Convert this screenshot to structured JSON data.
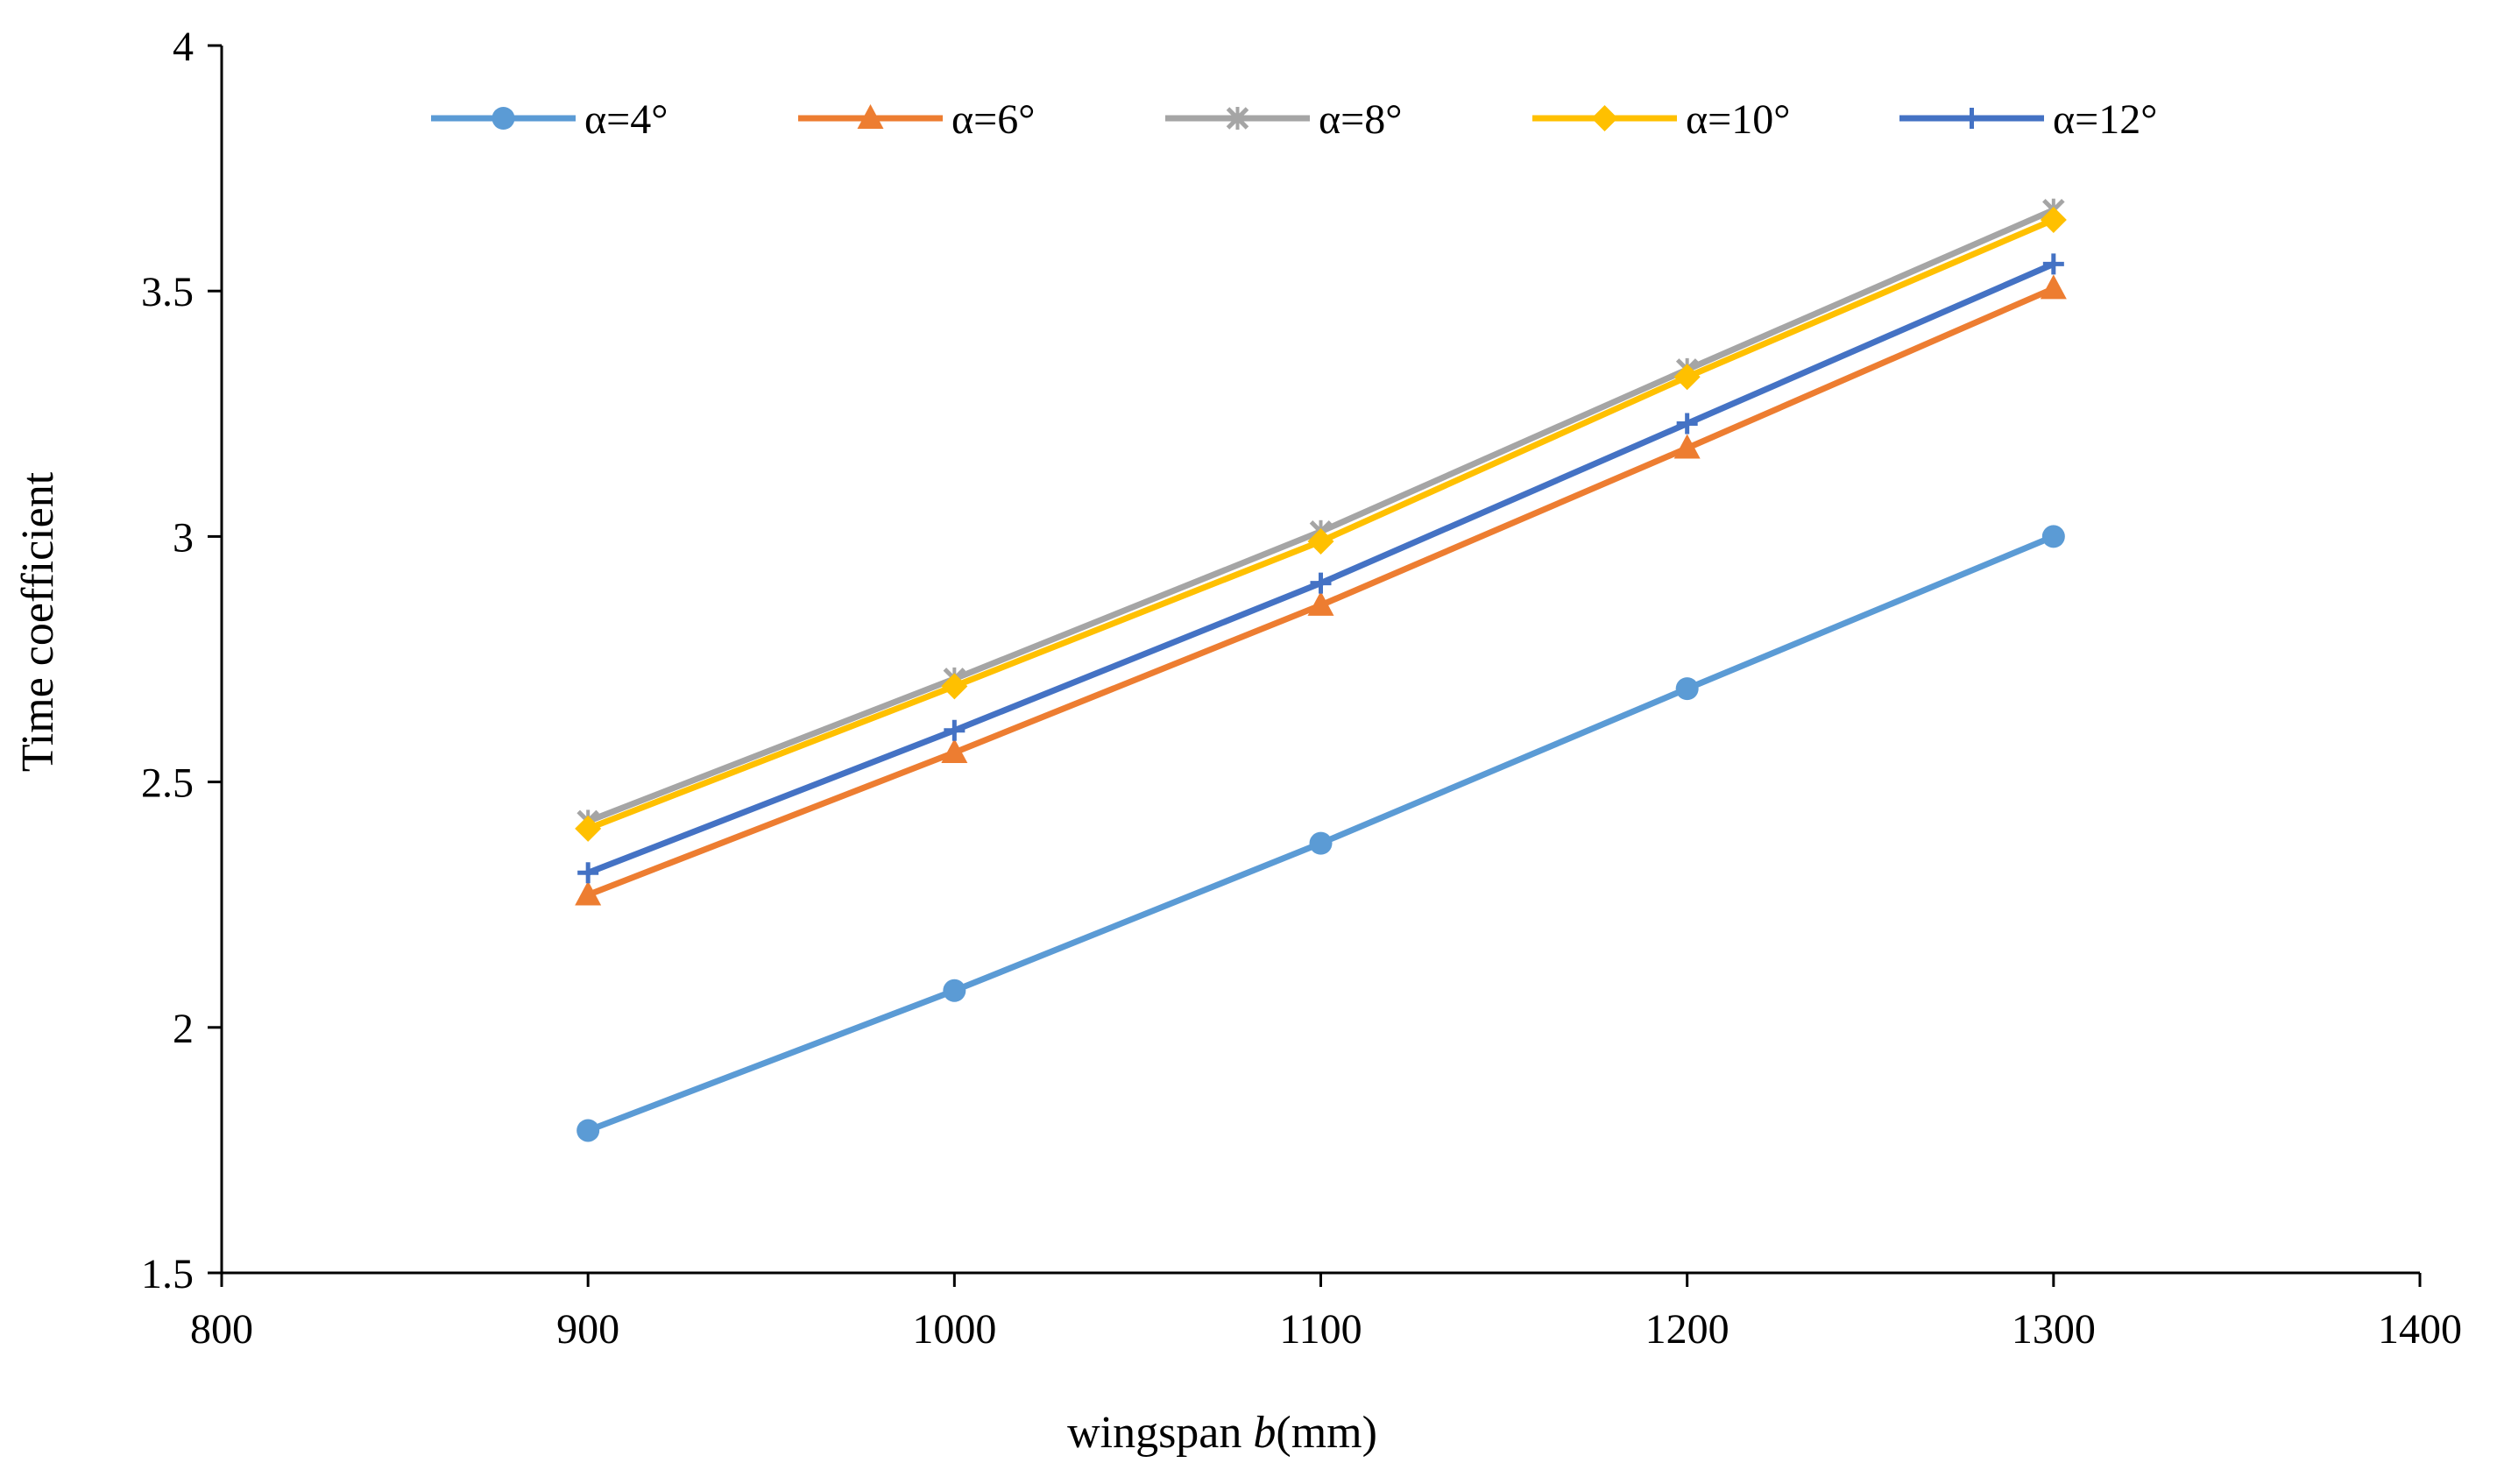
{
  "chart_data": {
    "type": "line",
    "title": "",
    "xlabel_prefix": "wingspan ",
    "xlabel_italic": "b",
    "xlabel_suffix": "(mm)",
    "ylabel": "Time coefficient",
    "xlim": [
      800,
      1400
    ],
    "ylim": [
      1.5,
      4
    ],
    "xticks": [
      800,
      900,
      1000,
      1100,
      1200,
      1300,
      1400
    ],
    "yticks": [
      1.5,
      2,
      2.5,
      3,
      3.5,
      4
    ],
    "ytick_labels": [
      "1.5",
      "2",
      "2.5",
      "3",
      "3.5",
      "4"
    ],
    "legend_position": "top",
    "x": [
      900,
      1000,
      1100,
      1200,
      1300
    ],
    "series": [
      {
        "name": "α=4°",
        "color": "#5B9BD5",
        "marker": "circle",
        "values": [
          1.79,
          2.075,
          2.375,
          2.69,
          3.0
        ]
      },
      {
        "name": "α=6°",
        "color": "#ED7D31",
        "marker": "triangle",
        "values": [
          2.27,
          2.56,
          2.86,
          3.18,
          3.505
        ]
      },
      {
        "name": "α=8°",
        "color": "#A5A5A5",
        "marker": "x",
        "values": [
          2.42,
          2.71,
          3.01,
          3.34,
          3.665
        ]
      },
      {
        "name": "α=10°",
        "color": "#FFC000",
        "marker": "diamond",
        "values": [
          2.405,
          2.695,
          2.99,
          3.325,
          3.645
        ]
      },
      {
        "name": "α=12°",
        "color": "#4472C4",
        "marker": "plus",
        "values": [
          2.315,
          2.605,
          2.905,
          3.23,
          3.555
        ]
      }
    ]
  }
}
